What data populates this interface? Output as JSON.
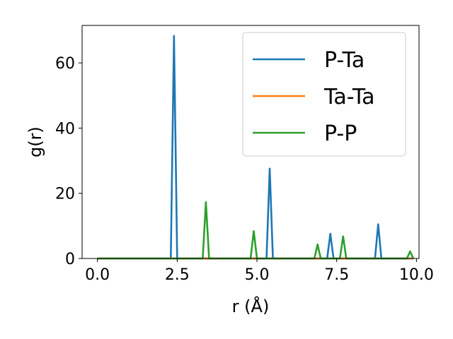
{
  "chart_data": {
    "type": "line",
    "title": "",
    "xlabel": "r (Å)",
    "ylabel": "g(r)",
    "xlim": [
      -0.48,
      10.08
    ],
    "ylim": [
      0,
      71.5
    ],
    "xticks": [
      0.0,
      2.5,
      5.0,
      7.5,
      10.0
    ],
    "xtick_labels": [
      "0.0",
      "2.5",
      "5.0",
      "7.5",
      "10.0"
    ],
    "yticks": [
      0,
      20,
      40,
      60
    ],
    "ytick_labels": [
      "0",
      "20",
      "40",
      "60"
    ],
    "grid": false,
    "legend_position": "top-right",
    "series": [
      {
        "name": "P-Ta",
        "color": "#1f77b4",
        "x": [
          0.0,
          2.3,
          2.4,
          2.5,
          5.3,
          5.4,
          5.5,
          7.2,
          7.3,
          7.4,
          8.7,
          8.8,
          8.9,
          9.9
        ],
        "y": [
          0,
          0,
          68.3,
          0,
          0,
          27.6,
          0,
          0,
          7.6,
          0,
          0,
          10.5,
          0,
          0
        ]
      },
      {
        "name": "Ta-Ta",
        "color": "#ff7f0e",
        "x": [
          0.0,
          9.9
        ],
        "y": [
          0,
          0
        ]
      },
      {
        "name": "P-P",
        "color": "#2ca02c",
        "x": [
          0.0,
          3.3,
          3.4,
          3.5,
          4.8,
          4.9,
          5.0,
          6.8,
          6.9,
          7.0,
          7.6,
          7.7,
          7.8,
          9.7,
          9.8,
          9.9
        ],
        "y": [
          0,
          0,
          17.3,
          0,
          0,
          8.4,
          0,
          0,
          4.3,
          0,
          0,
          6.8,
          0,
          0,
          2.2,
          0
        ]
      }
    ]
  }
}
